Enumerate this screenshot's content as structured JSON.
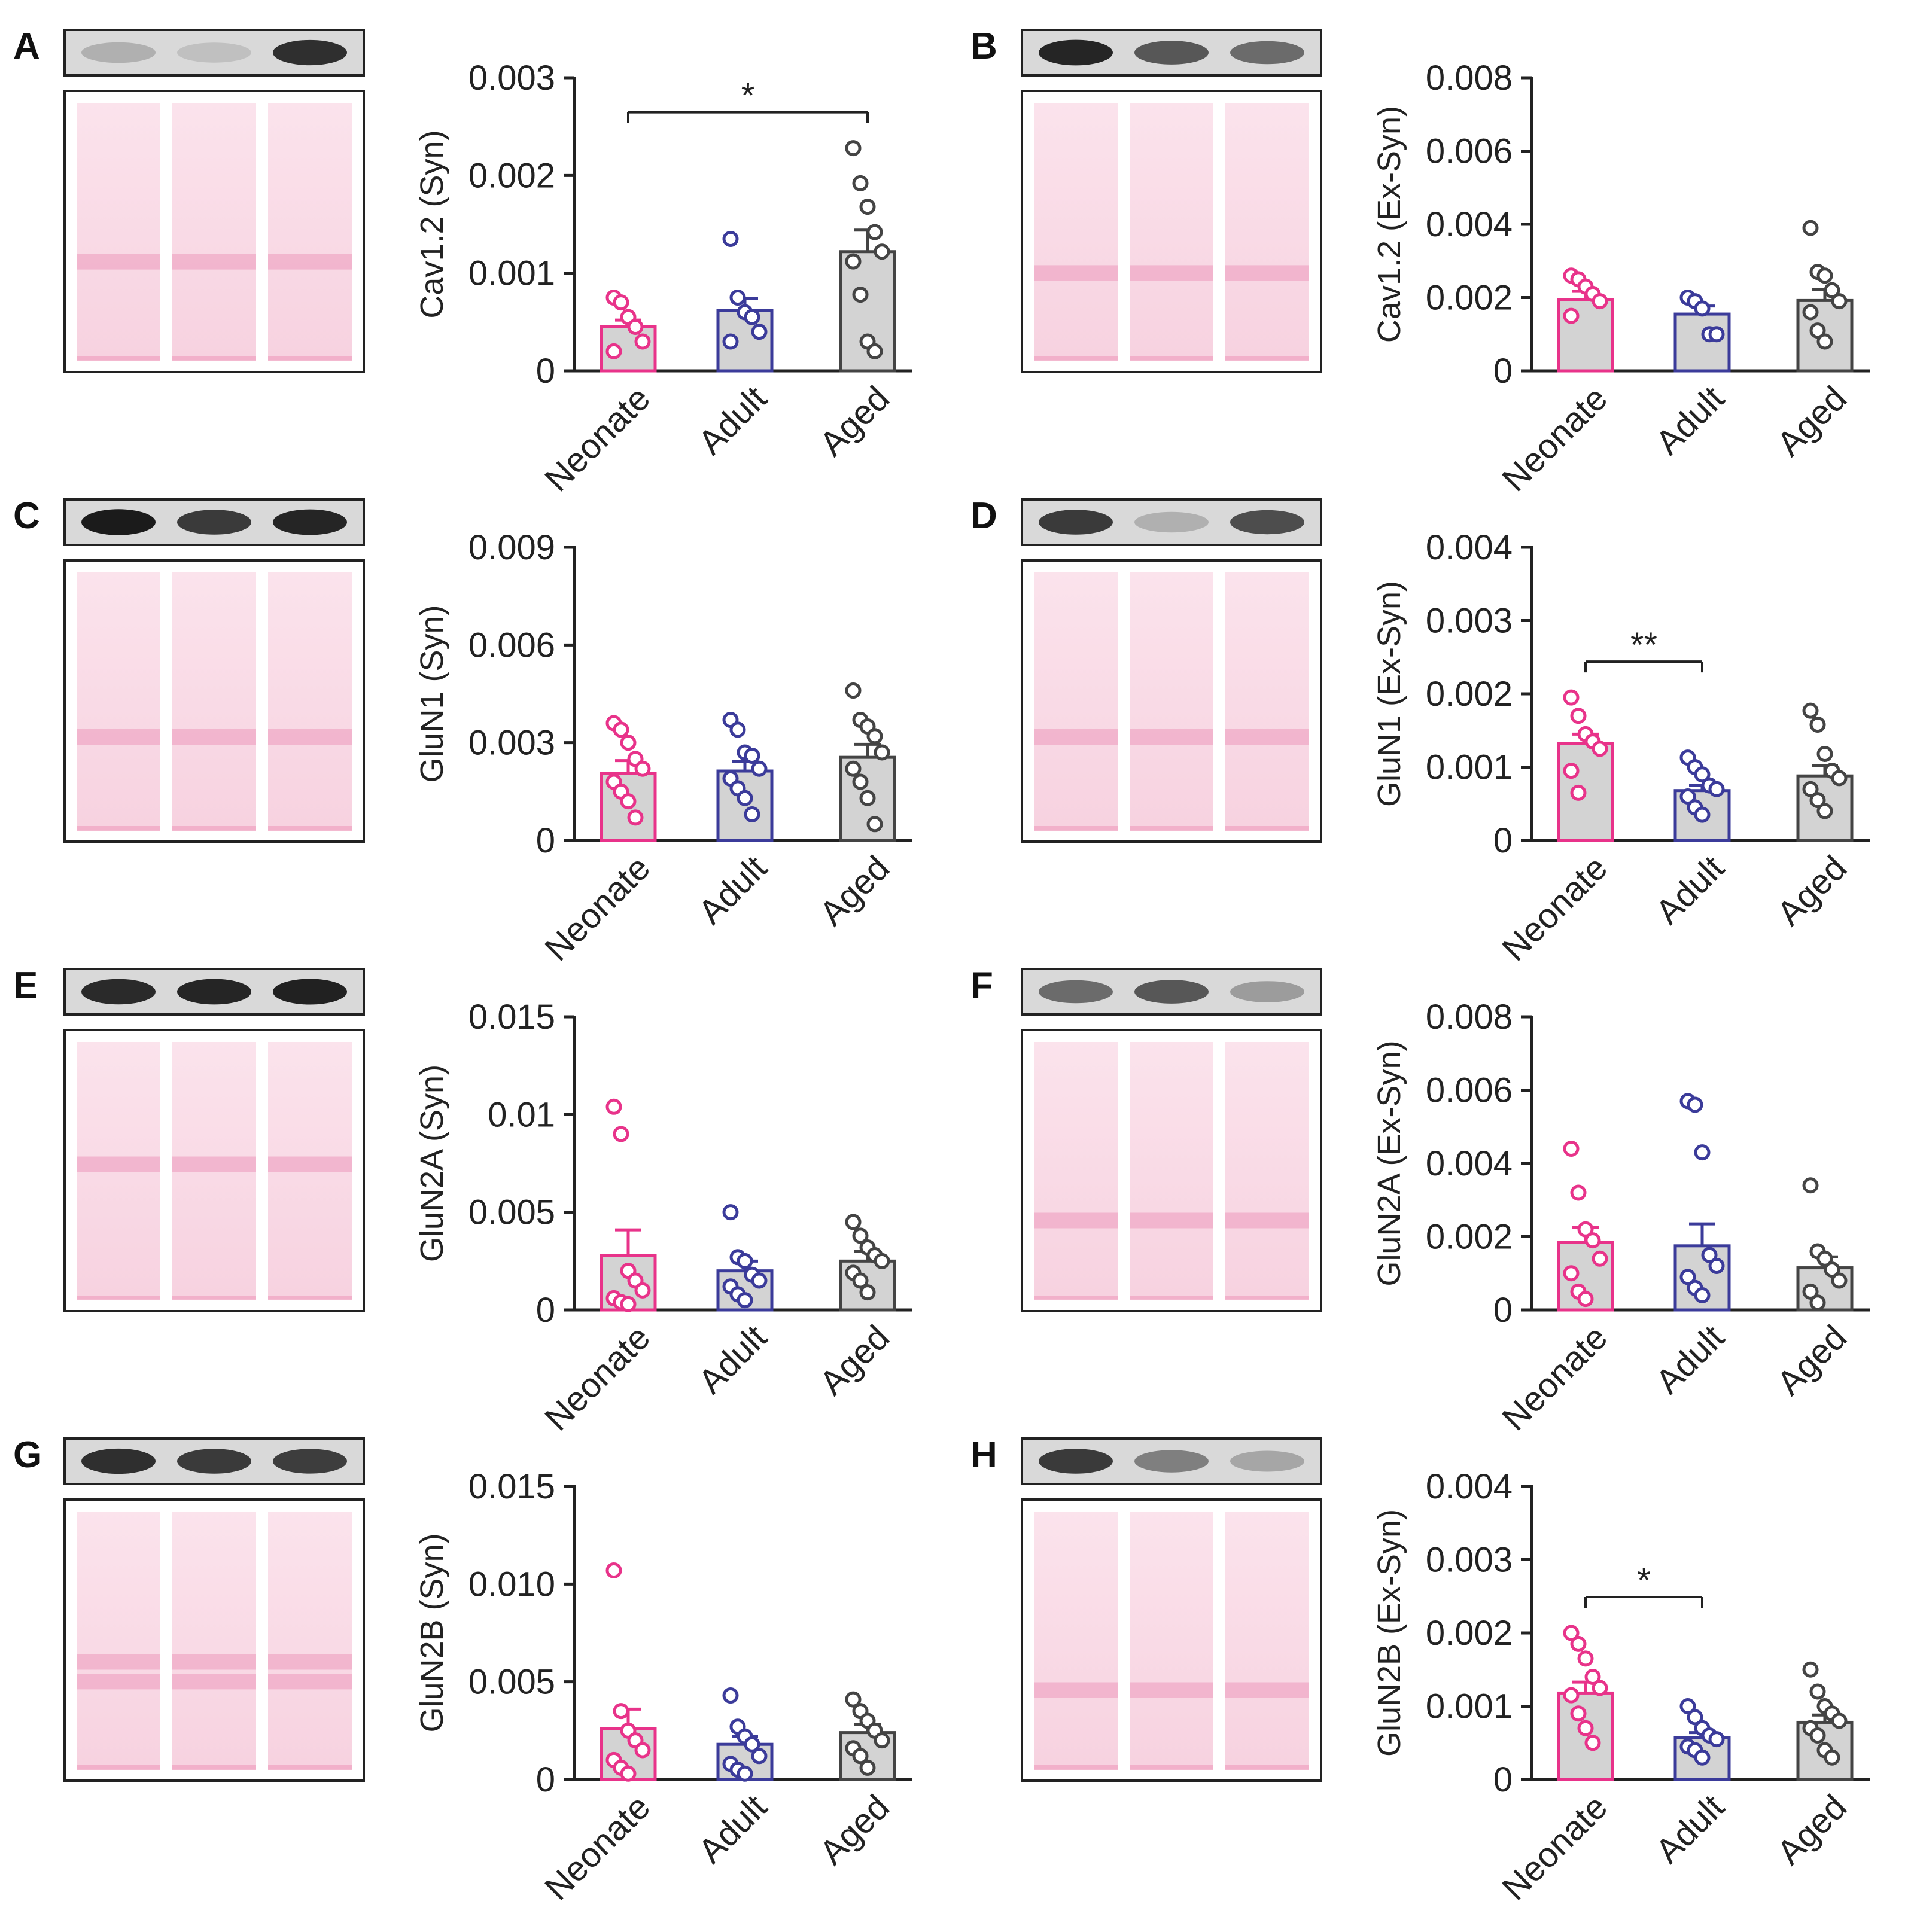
{
  "figure": {
    "groups": [
      "Neonate",
      "Adult",
      "Aged"
    ],
    "colors": {
      "neonate": "#e8338a",
      "adult": "#3b3b9a",
      "aged": "#444444",
      "bar_fill": "#d3d3d3",
      "axis": "#222222",
      "ponceau": "#f0a7c4"
    }
  },
  "chart_data": [
    {
      "panel": "A",
      "type": "bar",
      "title": "",
      "ylabel": "Cav1.2 (Syn)",
      "categories": [
        "Neonate",
        "Adult",
        "Aged"
      ],
      "yticks": [
        "0",
        "0.001",
        "0.002",
        "0.003"
      ],
      "ylim": [
        0,
        0.003
      ],
      "means": [
        0.00045,
        0.00062,
        0.00122
      ],
      "sem": [
        7e-05,
        0.00012,
        0.00022
      ],
      "points": [
        [
          0.00075,
          0.0007,
          0.00055,
          0.00045,
          0.0003,
          0.0002
        ],
        [
          0.00135,
          0.00075,
          0.0006,
          0.00055,
          0.0004,
          0.0003
        ],
        [
          0.00228,
          0.00192,
          0.00168,
          0.00142,
          0.00122,
          0.00112,
          0.00078,
          0.0003,
          0.0002
        ]
      ],
      "significance": [
        {
          "from": 0,
          "to": 2,
          "label": "*"
        }
      ],
      "blot": {
        "bands": [
          0.2,
          0.12,
          0.85
        ],
        "stain_bands": [
          0.58
        ]
      }
    },
    {
      "panel": "B",
      "type": "bar",
      "title": "",
      "ylabel": "Cav1.2 (Ex-Syn)",
      "categories": [
        "Neonate",
        "Adult",
        "Aged"
      ],
      "yticks": [
        "0",
        "0.002",
        "0.004",
        "0.006",
        "0.008"
      ],
      "ylim": [
        0,
        0.008
      ],
      "means": [
        0.00195,
        0.00155,
        0.00192
      ],
      "sem": [
        0.00022,
        0.00022,
        0.0003
      ],
      "points": [
        [
          0.0026,
          0.0025,
          0.0023,
          0.0021,
          0.0019,
          0.0015
        ],
        [
          0.002,
          0.0019,
          0.0017,
          0.001,
          0.001
        ],
        [
          0.0039,
          0.0027,
          0.0026,
          0.0022,
          0.0019,
          0.0016,
          0.0011,
          0.0008
        ]
      ],
      "significance": [],
      "blot": {
        "bands": [
          0.9,
          0.65,
          0.55
        ],
        "stain_bands": [
          0.62
        ]
      }
    },
    {
      "panel": "C",
      "type": "bar",
      "title": "",
      "ylabel": "GluN1 (Syn)",
      "categories": [
        "Neonate",
        "Adult",
        "Aged"
      ],
      "yticks": [
        "0",
        "0.003",
        "0.006",
        "0.009"
      ],
      "ylim": [
        0,
        0.009
      ],
      "means": [
        0.00205,
        0.00213,
        0.00255
      ],
      "sem": [
        0.0004,
        0.0003,
        0.0004
      ],
      "points": [
        [
          0.0036,
          0.0034,
          0.003,
          0.0025,
          0.0022,
          0.0018,
          0.0015,
          0.0012,
          0.0007
        ],
        [
          0.0037,
          0.0034,
          0.0027,
          0.0026,
          0.0022,
          0.0019,
          0.0016,
          0.0013,
          0.0008
        ],
        [
          0.0046,
          0.0037,
          0.0035,
          0.0032,
          0.0027,
          0.0022,
          0.0018,
          0.0013,
          0.0005
        ]
      ],
      "significance": [],
      "blot": {
        "bands": [
          0.95,
          0.8,
          0.9
        ],
        "stain_bands": [
          0.6
        ]
      }
    },
    {
      "panel": "D",
      "type": "bar",
      "title": "",
      "ylabel": "GluN1 (Ex-Syn)",
      "categories": [
        "Neonate",
        "Adult",
        "Aged"
      ],
      "yticks": [
        "0",
        "0.001",
        "0.002",
        "0.003",
        "0.004"
      ],
      "ylim": [
        0,
        0.004
      ],
      "means": [
        0.00132,
        0.00068,
        0.00088
      ],
      "sem": [
        0.00013,
        7e-05,
        0.00014
      ],
      "points": [
        [
          0.00195,
          0.0017,
          0.00145,
          0.00135,
          0.00125,
          0.00095,
          0.00065
        ],
        [
          0.00113,
          0.001,
          0.0009,
          0.00075,
          0.0007,
          0.0006,
          0.00045,
          0.00035
        ],
        [
          0.00177,
          0.00158,
          0.00118,
          0.00095,
          0.00085,
          0.0007,
          0.00055,
          0.0004
        ]
      ],
      "significance": [
        {
          "from": 0,
          "to": 1,
          "label": "**"
        }
      ],
      "blot": {
        "bands": [
          0.8,
          0.2,
          0.7
        ],
        "stain_bands": [
          0.6
        ]
      }
    },
    {
      "panel": "E",
      "type": "bar",
      "title": "",
      "ylabel": "GluN2A (Syn)",
      "categories": [
        "Neonate",
        "Adult",
        "Aged"
      ],
      "yticks": [
        "0",
        "0.005",
        "0.01",
        "0.015"
      ],
      "ylim": [
        0,
        0.015
      ],
      "means": [
        0.0028,
        0.002,
        0.0025
      ],
      "sem": [
        0.0013,
        0.0005,
        0.0005
      ],
      "points": [
        [
          0.0104,
          0.009,
          0.002,
          0.0015,
          0.001,
          0.0006,
          0.0004,
          0.0003
        ],
        [
          0.005,
          0.0027,
          0.0025,
          0.0018,
          0.0015,
          0.0012,
          0.0008,
          0.0005
        ],
        [
          0.0045,
          0.0038,
          0.0032,
          0.0028,
          0.0025,
          0.0019,
          0.0015,
          0.0009
        ]
      ],
      "significance": [],
      "blot": {
        "bands": [
          0.88,
          0.9,
          0.92
        ],
        "stain_bands": [
          0.45
        ]
      }
    },
    {
      "panel": "F",
      "type": "bar",
      "title": "",
      "ylabel": "GluN2A (Ex-Syn)",
      "categories": [
        "Neonate",
        "Adult",
        "Aged"
      ],
      "yticks": [
        "0",
        "0.002",
        "0.004",
        "0.006",
        "0.008"
      ],
      "ylim": [
        0,
        0.008
      ],
      "means": [
        0.00185,
        0.00175,
        0.00115
      ],
      "sem": [
        0.0004,
        0.0006,
        0.0003
      ],
      "points": [
        [
          0.0044,
          0.0032,
          0.0022,
          0.0019,
          0.0014,
          0.001,
          0.0005,
          0.0003
        ],
        [
          0.0057,
          0.0056,
          0.0043,
          0.0015,
          0.0012,
          0.0009,
          0.0006,
          0.0004
        ],
        [
          0.0034,
          0.0016,
          0.0014,
          0.0011,
          0.0008,
          0.0005,
          0.0002
        ]
      ],
      "significance": [],
      "blot": {
        "bands": [
          0.55,
          0.65,
          0.3
        ],
        "stain_bands": [
          0.65
        ]
      }
    },
    {
      "panel": "G",
      "type": "bar",
      "title": "",
      "ylabel": "GluN2B (Syn)",
      "categories": [
        "Neonate",
        "Adult",
        "Aged"
      ],
      "yticks": [
        "0",
        "0.005",
        "0.010",
        "0.015"
      ],
      "ylim": [
        0,
        0.015
      ],
      "means": [
        0.0026,
        0.0018,
        0.0024
      ],
      "sem": [
        0.001,
        0.0004,
        0.0004
      ],
      "points": [
        [
          0.0107,
          0.0035,
          0.0025,
          0.002,
          0.0015,
          0.001,
          0.0006,
          0.0003
        ],
        [
          0.0043,
          0.0027,
          0.0022,
          0.0018,
          0.0012,
          0.0008,
          0.0005,
          0.0003
        ],
        [
          0.0041,
          0.0035,
          0.003,
          0.0025,
          0.002,
          0.0016,
          0.0012,
          0.0006
        ]
      ],
      "significance": [],
      "blot": {
        "bands": [
          0.85,
          0.8,
          0.78
        ],
        "stain_bands": [
          0.55,
          0.62
        ]
      }
    },
    {
      "panel": "H",
      "type": "bar",
      "title": "",
      "ylabel": "GluN2B (Ex-Syn)",
      "categories": [
        "Neonate",
        "Adult",
        "Aged"
      ],
      "yticks": [
        "0",
        "0.001",
        "0.002",
        "0.003",
        "0.004"
      ],
      "ylim": [
        0,
        0.004
      ],
      "means": [
        0.00118,
        0.00057,
        0.00078
      ],
      "sem": [
        0.00015,
        7e-05,
        0.0001
      ],
      "points": [
        [
          0.002,
          0.00185,
          0.00165,
          0.0014,
          0.00125,
          0.00115,
          0.0009,
          0.0007,
          0.0005
        ],
        [
          0.001,
          0.00085,
          0.0007,
          0.0006,
          0.00055,
          0.00045,
          0.0004,
          0.0003
        ],
        [
          0.0015,
          0.0012,
          0.001,
          0.0009,
          0.0008,
          0.0007,
          0.0006,
          0.0004,
          0.0003
        ]
      ],
      "significance": [
        {
          "from": 0,
          "to": 1,
          "label": "*"
        }
      ],
      "blot": {
        "bands": [
          0.8,
          0.45,
          0.25
        ],
        "stain_bands": [
          0.65
        ]
      }
    }
  ]
}
